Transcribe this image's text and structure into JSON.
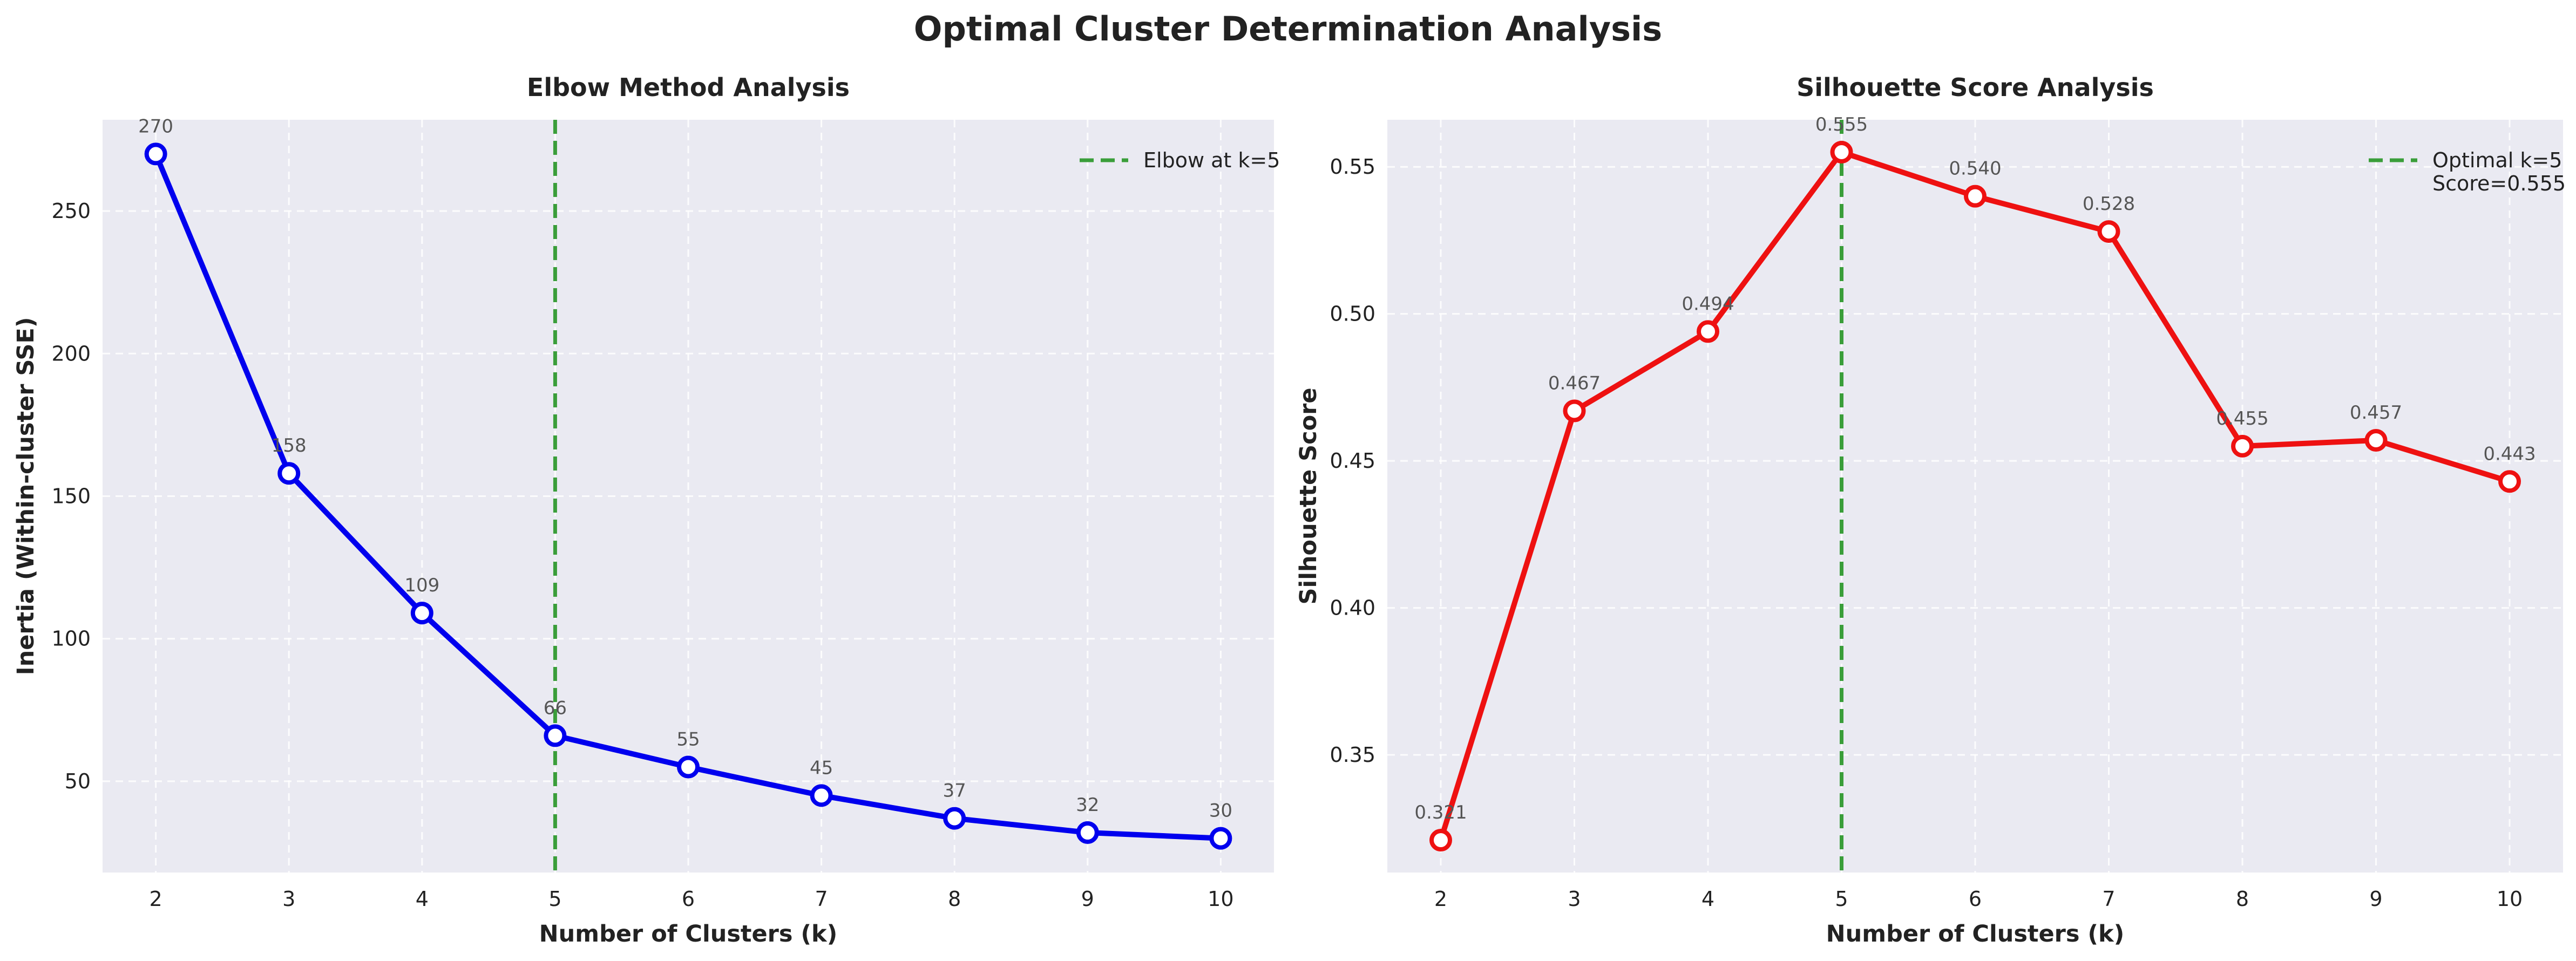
{
  "figure_title": "Optimal Cluster Determination Analysis",
  "colors": {
    "panel_bg": "#eaeaf2",
    "grid": "#ffffff",
    "elbow_line": "#0000ee",
    "silhouette_line": "#ee1111",
    "vline": "#3a9e3a",
    "data_label": "#555555"
  },
  "chart_data": [
    {
      "type": "line",
      "title": "Elbow Method Analysis",
      "xlabel": "Number of Clusters (k)",
      "ylabel": "Inertia (Within-cluster SSE)",
      "x": [
        2,
        3,
        4,
        5,
        6,
        7,
        8,
        9,
        10
      ],
      "y": [
        270,
        158,
        109,
        66,
        55,
        45,
        37,
        32,
        30
      ],
      "data_labels": [
        "270",
        "158",
        "109",
        "66",
        "55",
        "45",
        "37",
        "32",
        "30"
      ],
      "xlim": [
        1.6,
        10.4
      ],
      "ylim": [
        18,
        282
      ],
      "xticks": [
        "2",
        "3",
        "4",
        "5",
        "6",
        "7",
        "8",
        "9",
        "10"
      ],
      "yticks": [
        50,
        100,
        150,
        200,
        250
      ],
      "ytick_labels": [
        "50",
        "100",
        "150",
        "200",
        "250"
      ],
      "vline_x": 5,
      "legend": {
        "placement": "top-right",
        "entries": [
          "Elbow at k=5"
        ]
      },
      "grid": true
    },
    {
      "type": "line",
      "title": "Silhouette Score Analysis",
      "xlabel": "Number of Clusters (k)",
      "ylabel": "Silhouette Score",
      "x": [
        2,
        3,
        4,
        5,
        6,
        7,
        8,
        9,
        10
      ],
      "y": [
        0.321,
        0.467,
        0.494,
        0.555,
        0.54,
        0.528,
        0.455,
        0.457,
        0.443
      ],
      "data_labels": [
        "0.321",
        "0.467",
        "0.494",
        "0.555",
        "0.540",
        "0.528",
        "0.455",
        "0.457",
        "0.443"
      ],
      "xlim": [
        1.6,
        10.4
      ],
      "ylim": [
        0.31,
        0.566
      ],
      "xticks": [
        "2",
        "3",
        "4",
        "5",
        "6",
        "7",
        "8",
        "9",
        "10"
      ],
      "yticks": [
        0.35,
        0.4,
        0.45,
        0.5,
        0.55
      ],
      "ytick_labels": [
        "0.35",
        "0.40",
        "0.45",
        "0.50",
        "0.55"
      ],
      "vline_x": 5,
      "legend": {
        "placement": "top-right",
        "entries": [
          "Optimal k=5",
          "Score=0.555"
        ]
      },
      "grid": true
    }
  ]
}
